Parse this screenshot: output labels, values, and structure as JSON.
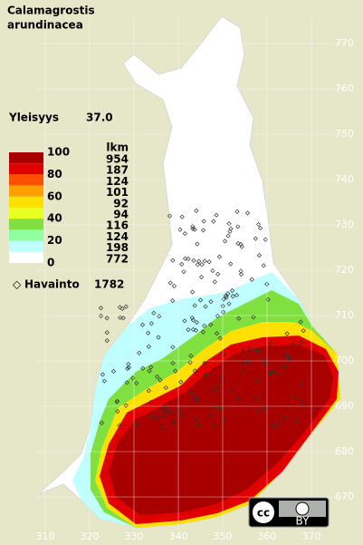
{
  "title": [
    "Calamagrostis",
    "arundinacea"
  ],
  "frequency": {
    "label": "Yleisyys",
    "value": 37.0,
    "value_label": "37.0"
  },
  "legend": {
    "ticks": [
      100,
      80,
      60,
      40,
      20,
      0
    ],
    "count_header": "lkm",
    "bands": [
      {
        "color": "#a80000",
        "count": 954
      },
      {
        "color": "#e00000",
        "count": 187
      },
      {
        "color": "#ff5000",
        "count": 124
      },
      {
        "color": "#ffa000",
        "count": 101
      },
      {
        "color": "#ffe000",
        "count": 92
      },
      {
        "color": "#e8ff20",
        "count": 94
      },
      {
        "color": "#80e040",
        "count": 116
      },
      {
        "color": "#90ffa0",
        "count": 124
      },
      {
        "color": "#c0ffff",
        "count": 198
      },
      {
        "color": "#ffffff",
        "count": 772
      }
    ]
  },
  "observations": {
    "label": "Havainto",
    "count": 1782
  },
  "grid": {
    "x_labels": [
      310,
      320,
      330,
      340,
      350,
      360,
      370
    ],
    "y_labels": [
      770,
      760,
      750,
      740,
      730,
      720,
      710,
      700,
      690,
      680,
      670
    ]
  },
  "license": {
    "cc": "cc",
    "by": "BY"
  }
}
